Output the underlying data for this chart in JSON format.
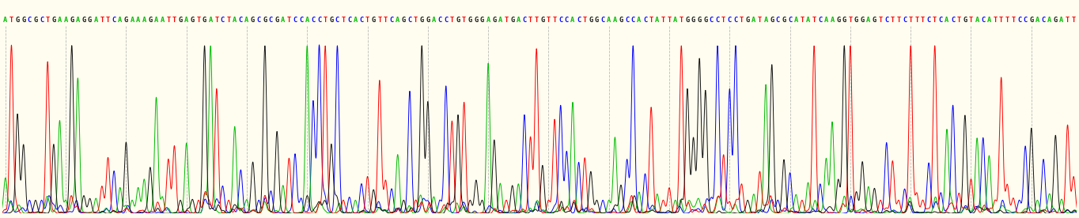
{
  "sequence": "ATGGCGCTGAAGAGGATTCAGAAAGAATTGAGTGATCTACAGCGCGATCCACCTGCTCACTGTTCAGCTGGACCTGTGGGAGATGACTTGTTCCACTGGCAAGCCACTATTATGGGGCCTCCTGATAGCGCATATCAAGGTGGAGTCTTCTTTCTCACTGTACATTTTCCGACAGATT",
  "bg_color": "#fffdf0",
  "colors": {
    "A": "#00bb00",
    "T": "#ff0000",
    "G": "#111111",
    "C": "#0000ff"
  },
  "grid_color": "#aaaaaa",
  "figsize": [
    13.64,
    2.76
  ],
  "dpi": 100,
  "text_fontsize": 6.2,
  "seed": 42,
  "seed2": 123
}
